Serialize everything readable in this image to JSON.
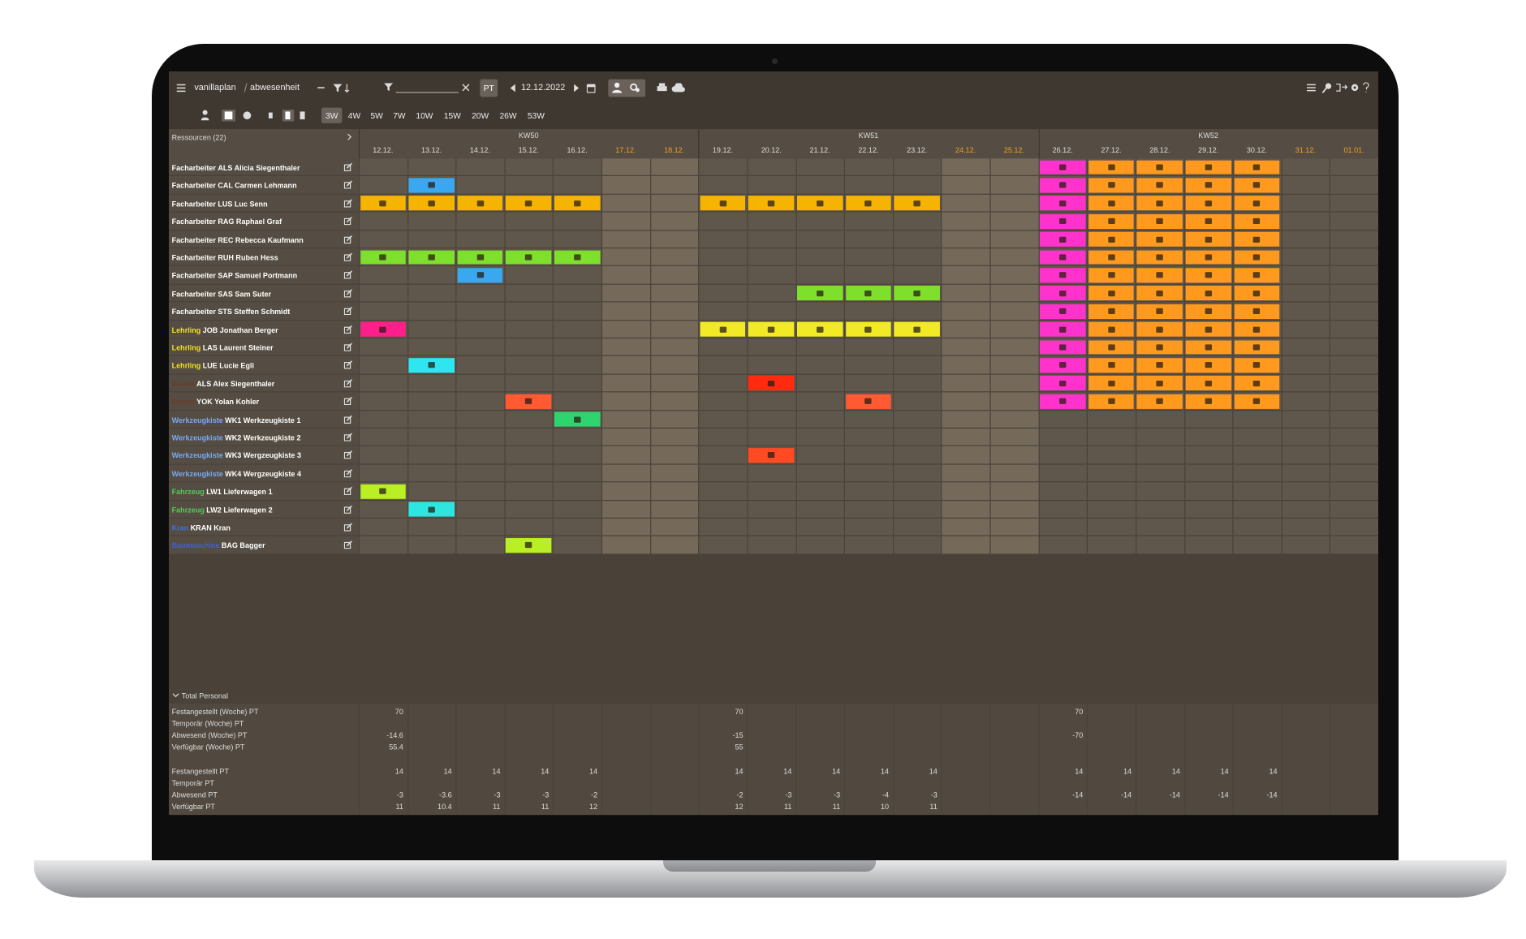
{
  "app": {
    "breadcrumb": [
      "vanillaplan",
      "abwesenheit"
    ],
    "mode": "PT",
    "date": "12.12.2022",
    "views": [
      "3W",
      "4W",
      "5W",
      "7W",
      "10W",
      "15W",
      "20W",
      "26W",
      "53W"
    ],
    "active_view": 0,
    "resources_label": "Ressourcen (22)",
    "weeks": [
      "KW50",
      "KW51",
      "KW52"
    ],
    "days": [
      {
        "label": "12.12.",
        "weekend": false
      },
      {
        "label": "13.12.",
        "weekend": false
      },
      {
        "label": "14.12.",
        "weekend": false
      },
      {
        "label": "15.12.",
        "weekend": false
      },
      {
        "label": "16.12.",
        "weekend": false
      },
      {
        "label": "17.12.",
        "weekend": true
      },
      {
        "label": "18.12.",
        "weekend": true
      },
      {
        "label": "19.12.",
        "weekend": false
      },
      {
        "label": "20.12.",
        "weekend": false
      },
      {
        "label": "21.12.",
        "weekend": false
      },
      {
        "label": "22.12.",
        "weekend": false
      },
      {
        "label": "23.12.",
        "weekend": false
      },
      {
        "label": "24.12.",
        "weekend": true
      },
      {
        "label": "25.12.",
        "weekend": true
      },
      {
        "label": "26.12.",
        "weekend": false
      },
      {
        "label": "27.12.",
        "weekend": false
      },
      {
        "label": "28.12.",
        "weekend": false
      },
      {
        "label": "29.12.",
        "weekend": false
      },
      {
        "label": "30.12.",
        "weekend": false
      },
      {
        "label": "31.12.",
        "weekend": true
      },
      {
        "label": "01.01.",
        "weekend": true
      }
    ],
    "group_colors": {
      "Facharbeiter": "#ffffff",
      "Lehrling": "#f2e222",
      "Extern": "#6b3a2a",
      "Werkzeugkiste": "#79a9f2",
      "Fahrzeug": "#56c95a",
      "Kran": "#3f6fd8",
      "Baumaschine": "#3f62d0"
    },
    "rows": [
      {
        "group": "Facharbeiter",
        "name": "ALS Alicia Siegenthaler",
        "cells": [
          null,
          null,
          null,
          null,
          null,
          null,
          null,
          null,
          null,
          null,
          null,
          null,
          null,
          null,
          "#ff33cc",
          "#ff9a1f",
          "#ff9a1f",
          "#ff9a1f",
          "#ff9a1f",
          null,
          null
        ]
      },
      {
        "group": "Facharbeiter",
        "name": "CAL Carmen Lehmann",
        "cells": [
          null,
          "#3aa8f0",
          null,
          null,
          null,
          null,
          null,
          null,
          null,
          null,
          null,
          null,
          null,
          null,
          "#ff33cc",
          "#ff9a1f",
          "#ff9a1f",
          "#ff9a1f",
          "#ff9a1f",
          null,
          null
        ]
      },
      {
        "group": "Facharbeiter",
        "name": "LUS Luc Senn",
        "cells": [
          "#f5b400",
          "#f5b400",
          "#f5b400",
          "#f5b400",
          "#f5b400",
          null,
          null,
          "#f5b400",
          "#f5b400",
          "#f5b400",
          "#f5b400",
          "#f5b400",
          null,
          null,
          "#ff33cc",
          "#ff9a1f",
          "#ff9a1f",
          "#ff9a1f",
          "#ff9a1f",
          null,
          null
        ]
      },
      {
        "group": "Facharbeiter",
        "name": "RAG Raphael Graf",
        "cells": [
          null,
          null,
          null,
          null,
          null,
          null,
          null,
          null,
          null,
          null,
          null,
          null,
          null,
          null,
          "#ff33cc",
          "#ff9a1f",
          "#ff9a1f",
          "#ff9a1f",
          "#ff9a1f",
          null,
          null
        ]
      },
      {
        "group": "Facharbeiter",
        "name": "REC Rebecca Kaufmann",
        "cells": [
          null,
          null,
          null,
          null,
          null,
          null,
          null,
          null,
          null,
          null,
          null,
          null,
          null,
          null,
          "#ff33cc",
          "#ff9a1f",
          "#ff9a1f",
          "#ff9a1f",
          "#ff9a1f",
          null,
          null
        ]
      },
      {
        "group": "Facharbeiter",
        "name": "RUH Ruben Hess",
        "cells": [
          "#7ee02c",
          "#7ee02c",
          "#7ee02c",
          "#7ee02c",
          "#7ee02c",
          null,
          null,
          null,
          null,
          null,
          null,
          null,
          null,
          null,
          "#ff33cc",
          "#ff9a1f",
          "#ff9a1f",
          "#ff9a1f",
          "#ff9a1f",
          null,
          null
        ]
      },
      {
        "group": "Facharbeiter",
        "name": "SAP Samuel Portmann",
        "cells": [
          null,
          null,
          "#3aa8f0",
          null,
          null,
          null,
          null,
          null,
          null,
          null,
          null,
          null,
          null,
          null,
          "#ff33cc",
          "#ff9a1f",
          "#ff9a1f",
          "#ff9a1f",
          "#ff9a1f",
          null,
          null
        ]
      },
      {
        "group": "Facharbeiter",
        "name": "SAS Sam Suter",
        "cells": [
          null,
          null,
          null,
          null,
          null,
          null,
          null,
          null,
          null,
          "#7ee02c",
          "#7ee02c",
          "#7ee02c",
          null,
          null,
          "#ff33cc",
          "#ff9a1f",
          "#ff9a1f",
          "#ff9a1f",
          "#ff9a1f",
          null,
          null
        ]
      },
      {
        "group": "Facharbeiter",
        "name": "STS Steffen Schmidt",
        "cells": [
          null,
          null,
          null,
          null,
          null,
          null,
          null,
          null,
          null,
          null,
          null,
          null,
          null,
          null,
          "#ff33cc",
          "#ff9a1f",
          "#ff9a1f",
          "#ff9a1f",
          "#ff9a1f",
          null,
          null
        ]
      },
      {
        "group": "Lehrling",
        "name": "JOB Jonathan Berger",
        "cells": [
          "#ff1f8a",
          null,
          null,
          null,
          null,
          null,
          null,
          "#f2ea24",
          "#f2ea24",
          "#f2ea24",
          "#f2ea24",
          "#f2ea24",
          null,
          null,
          "#ff33cc",
          "#ff9a1f",
          "#ff9a1f",
          "#ff9a1f",
          "#ff9a1f",
          null,
          null
        ]
      },
      {
        "group": "Lehrling",
        "name": "LAS Laurent Steiner",
        "cells": [
          null,
          null,
          null,
          null,
          null,
          null,
          null,
          null,
          null,
          null,
          null,
          null,
          null,
          null,
          "#ff33cc",
          "#ff9a1f",
          "#ff9a1f",
          "#ff9a1f",
          "#ff9a1f",
          null,
          null
        ]
      },
      {
        "group": "Lehrling",
        "name": "LUE Lucie Egli",
        "cells": [
          null,
          "#2ee6f0",
          null,
          null,
          null,
          null,
          null,
          null,
          null,
          null,
          null,
          null,
          null,
          null,
          "#ff33cc",
          "#ff9a1f",
          "#ff9a1f",
          "#ff9a1f",
          "#ff9a1f",
          null,
          null
        ]
      },
      {
        "group": "Extern",
        "name": "ALS Alex Siegenthaler",
        "cells": [
          null,
          null,
          null,
          null,
          null,
          null,
          null,
          null,
          "#ff2a10",
          null,
          null,
          null,
          null,
          null,
          "#ff33cc",
          "#ff9a1f",
          "#ff9a1f",
          "#ff9a1f",
          "#ff9a1f",
          null,
          null
        ]
      },
      {
        "group": "Extern",
        "name": "YOK Yolan Kohler",
        "cells": [
          null,
          null,
          null,
          "#ff5a32",
          null,
          null,
          null,
          null,
          null,
          null,
          "#ff5a32",
          null,
          null,
          null,
          "#ff33cc",
          "#ff9a1f",
          "#ff9a1f",
          "#ff9a1f",
          "#ff9a1f",
          null,
          null
        ]
      },
      {
        "group": "Werkzeugkiste",
        "name": "WK1 Werkzeugkiste 1",
        "cells": [
          null,
          null,
          null,
          null,
          "#2ed46e",
          null,
          null,
          null,
          null,
          null,
          null,
          null,
          null,
          null,
          null,
          null,
          null,
          null,
          null,
          null,
          null
        ]
      },
      {
        "group": "Werkzeugkiste",
        "name": "WK2 Werkzeugkiste 2",
        "cells": [
          null,
          null,
          null,
          null,
          null,
          null,
          null,
          null,
          null,
          null,
          null,
          null,
          null,
          null,
          null,
          null,
          null,
          null,
          null,
          null,
          null
        ]
      },
      {
        "group": "Werkzeugkiste",
        "name": "WK3 Wergzeugkiste 3",
        "cells": [
          null,
          null,
          null,
          null,
          null,
          null,
          null,
          null,
          "#ff4a22",
          null,
          null,
          null,
          null,
          null,
          null,
          null,
          null,
          null,
          null,
          null,
          null
        ]
      },
      {
        "group": "Werkzeugkiste",
        "name": "WK4 Wergzeugkiste 4",
        "cells": [
          null,
          null,
          null,
          null,
          null,
          null,
          null,
          null,
          null,
          null,
          null,
          null,
          null,
          null,
          null,
          null,
          null,
          null,
          null,
          null,
          null
        ]
      },
      {
        "group": "Fahrzeug",
        "name": "LW1 Lieferwagen 1",
        "cells": [
          "#b9ef23",
          null,
          null,
          null,
          null,
          null,
          null,
          null,
          null,
          null,
          null,
          null,
          null,
          null,
          null,
          null,
          null,
          null,
          null,
          null,
          null
        ]
      },
      {
        "group": "Fahrzeug",
        "name": "LW2 Lieferwagen 2",
        "cells": [
          null,
          "#2ee6e0",
          null,
          null,
          null,
          null,
          null,
          null,
          null,
          null,
          null,
          null,
          null,
          null,
          null,
          null,
          null,
          null,
          null,
          null,
          null
        ]
      },
      {
        "group": "Kran",
        "name": "KRAN Kran",
        "cells": [
          null,
          null,
          null,
          null,
          null,
          null,
          null,
          null,
          null,
          null,
          null,
          null,
          null,
          null,
          null,
          null,
          null,
          null,
          null,
          null,
          null
        ]
      },
      {
        "group": "Baumaschine",
        "name": "BAG Bagger",
        "cells": [
          null,
          null,
          null,
          "#b9ef23",
          null,
          null,
          null,
          null,
          null,
          null,
          null,
          null,
          null,
          null,
          null,
          null,
          null,
          null,
          null,
          null,
          null
        ]
      }
    ],
    "totals": {
      "title": "Total Personal",
      "weekly": [
        {
          "label": "Festangestellt (Woche) PT",
          "values": [
            70,
            70,
            70
          ]
        },
        {
          "label": "Temporär (Woche) PT"
        },
        {
          "label": "Abwesend (Woche) PT",
          "values": [
            -14.6,
            -15,
            -70
          ]
        },
        {
          "label": "Verfügbar (Woche) PT",
          "values": [
            55.4,
            55,
            null
          ]
        }
      ],
      "daily": [
        {
          "label": "Festangestellt PT",
          "values": [
            14,
            14,
            14,
            14,
            14,
            null,
            null,
            14,
            14,
            14,
            14,
            14,
            null,
            null,
            14,
            14,
            14,
            14,
            14,
            null,
            null
          ]
        },
        {
          "label": "Temporär PT"
        },
        {
          "label": "Abwesend PT",
          "values": [
            -3,
            -3.6,
            -3,
            -3,
            -2,
            null,
            null,
            -2,
            -3,
            -3,
            -4,
            -3,
            null,
            null,
            -14,
            -14,
            -14,
            -14,
            -14,
            null,
            null
          ]
        },
        {
          "label": "Verfügbar PT",
          "values": [
            11,
            10.4,
            11,
            11,
            12,
            null,
            null,
            12,
            11,
            11,
            10,
            11,
            null,
            null,
            null,
            null,
            null,
            null,
            null,
            null,
            null
          ]
        }
      ]
    }
  }
}
